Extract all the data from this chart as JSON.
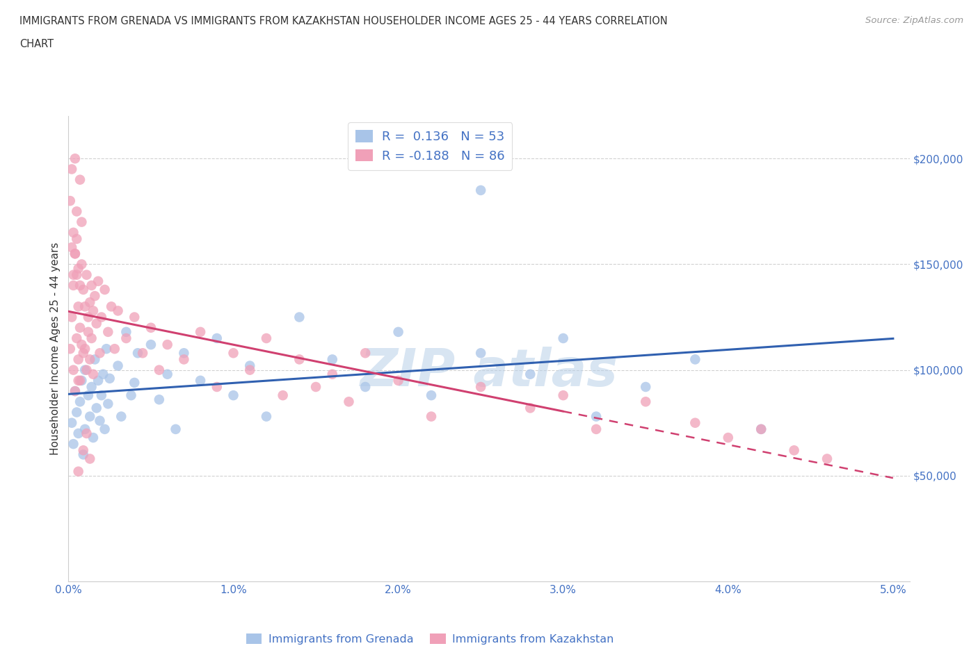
{
  "title_line1": "IMMIGRANTS FROM GRENADA VS IMMIGRANTS FROM KAZAKHSTAN HOUSEHOLDER INCOME AGES 25 - 44 YEARS CORRELATION",
  "title_line2": "CHART",
  "source": "Source: ZipAtlas.com",
  "ylabel": "Householder Income Ages 25 - 44 years",
  "legend_grenada": "Immigrants from Grenada",
  "legend_kazakhstan": "Immigrants from Kazakhstan",
  "R_grenada": 0.136,
  "N_grenada": 53,
  "R_kazakhstan": -0.188,
  "N_kazakhstan": 86,
  "color_grenada": "#a8c4e8",
  "color_kazakhstan": "#f0a0b8",
  "line_color_grenada": "#3060b0",
  "line_color_kazakhstan": "#d04070",
  "xlim": [
    0.0,
    0.051
  ],
  "ylim": [
    0,
    220000
  ],
  "yticks": [
    50000,
    100000,
    150000,
    200000
  ],
  "ytick_labels": [
    "$50,000",
    "$100,000",
    "$150,000",
    "$200,000"
  ],
  "xticks": [
    0.0,
    0.01,
    0.02,
    0.03,
    0.04,
    0.05
  ],
  "xtick_labels": [
    "0.0%",
    "1.0%",
    "2.0%",
    "3.0%",
    "4.0%",
    "5.0%"
  ],
  "grenada_x": [
    0.0002,
    0.0003,
    0.0004,
    0.0005,
    0.0006,
    0.0007,
    0.0008,
    0.0009,
    0.001,
    0.001,
    0.0012,
    0.0013,
    0.0014,
    0.0015,
    0.0016,
    0.0017,
    0.0018,
    0.0019,
    0.002,
    0.0021,
    0.0022,
    0.0023,
    0.0024,
    0.0025,
    0.003,
    0.0032,
    0.0035,
    0.0038,
    0.004,
    0.0042,
    0.005,
    0.0055,
    0.006,
    0.0065,
    0.007,
    0.008,
    0.009,
    0.01,
    0.011,
    0.012,
    0.014,
    0.016,
    0.018,
    0.02,
    0.022,
    0.025,
    0.028,
    0.03,
    0.032,
    0.035,
    0.038,
    0.042,
    0.025
  ],
  "grenada_y": [
    75000,
    65000,
    90000,
    80000,
    70000,
    85000,
    95000,
    60000,
    100000,
    72000,
    88000,
    78000,
    92000,
    68000,
    105000,
    82000,
    95000,
    76000,
    88000,
    98000,
    72000,
    110000,
    84000,
    96000,
    102000,
    78000,
    118000,
    88000,
    94000,
    108000,
    112000,
    86000,
    98000,
    72000,
    108000,
    95000,
    115000,
    88000,
    102000,
    78000,
    125000,
    105000,
    92000,
    118000,
    88000,
    108000,
    98000,
    115000,
    78000,
    92000,
    105000,
    72000,
    185000
  ],
  "kazakhstan_x": [
    0.0001,
    0.0002,
    0.0003,
    0.0003,
    0.0004,
    0.0004,
    0.0005,
    0.0005,
    0.0006,
    0.0006,
    0.0006,
    0.0007,
    0.0007,
    0.0007,
    0.0008,
    0.0008,
    0.0009,
    0.0009,
    0.001,
    0.001,
    0.0011,
    0.0011,
    0.0012,
    0.0012,
    0.0013,
    0.0013,
    0.0014,
    0.0014,
    0.0015,
    0.0015,
    0.0016,
    0.0017,
    0.0018,
    0.0019,
    0.002,
    0.0022,
    0.0024,
    0.0026,
    0.0028,
    0.003,
    0.0035,
    0.004,
    0.0045,
    0.005,
    0.0055,
    0.006,
    0.007,
    0.008,
    0.009,
    0.01,
    0.011,
    0.012,
    0.013,
    0.014,
    0.015,
    0.016,
    0.017,
    0.018,
    0.02,
    0.022,
    0.025,
    0.028,
    0.03,
    0.032,
    0.035,
    0.038,
    0.04,
    0.042,
    0.044,
    0.046,
    0.0003,
    0.0005,
    0.0007,
    0.0002,
    0.0004,
    0.0006,
    0.0008,
    0.0001,
    0.0003,
    0.0005,
    0.0009,
    0.0011,
    0.0013,
    0.0002,
    0.0006,
    0.0004
  ],
  "kazakhstan_y": [
    110000,
    125000,
    140000,
    100000,
    155000,
    90000,
    145000,
    115000,
    130000,
    105000,
    95000,
    140000,
    120000,
    95000,
    150000,
    112000,
    138000,
    108000,
    130000,
    110000,
    145000,
    100000,
    125000,
    118000,
    132000,
    105000,
    140000,
    115000,
    128000,
    98000,
    135000,
    122000,
    142000,
    108000,
    125000,
    138000,
    118000,
    130000,
    110000,
    128000,
    115000,
    125000,
    108000,
    120000,
    100000,
    112000,
    105000,
    118000,
    92000,
    108000,
    100000,
    115000,
    88000,
    105000,
    92000,
    98000,
    85000,
    108000,
    95000,
    78000,
    92000,
    82000,
    88000,
    72000,
    85000,
    75000,
    68000,
    72000,
    62000,
    58000,
    165000,
    175000,
    190000,
    158000,
    155000,
    148000,
    170000,
    180000,
    145000,
    162000,
    62000,
    70000,
    58000,
    195000,
    52000,
    200000
  ]
}
